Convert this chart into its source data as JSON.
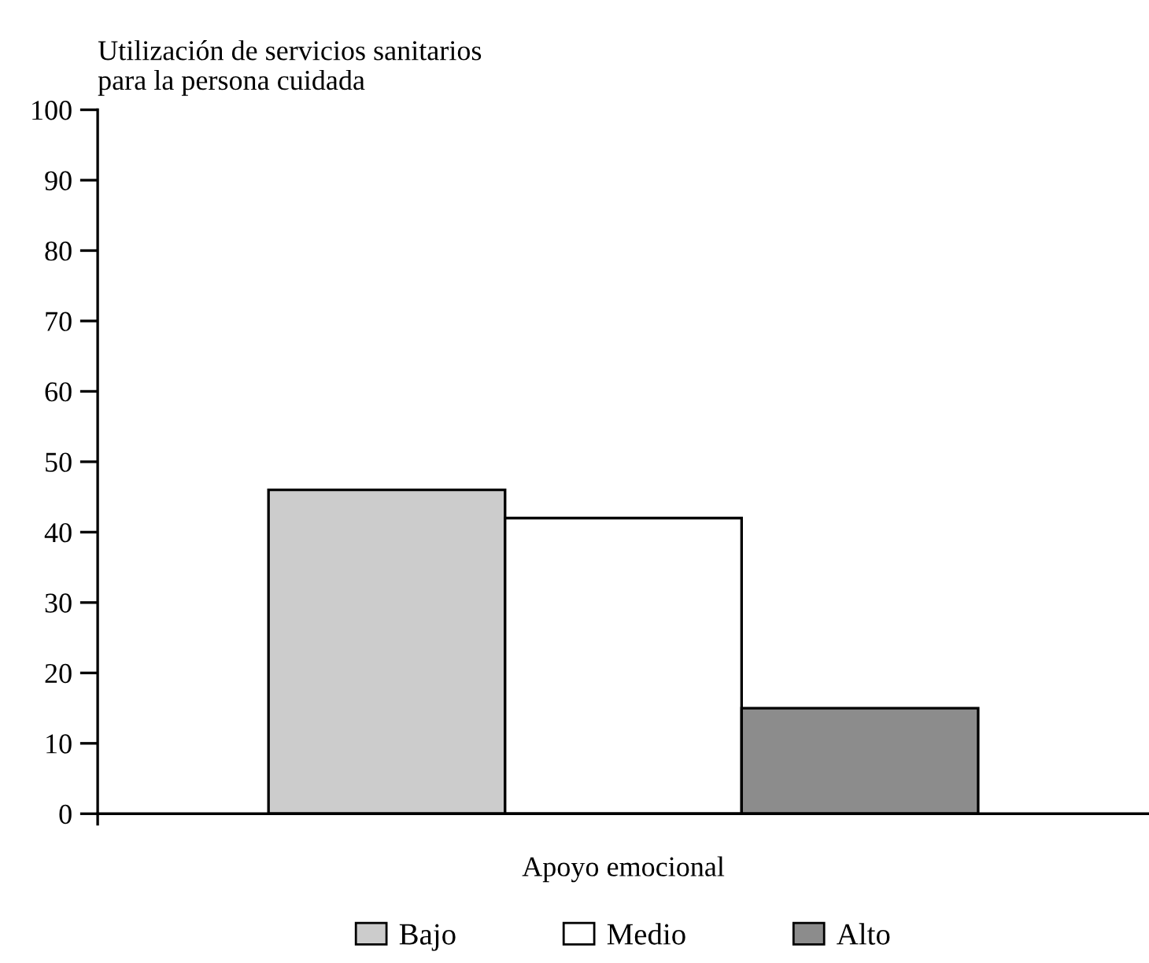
{
  "chart_data": {
    "type": "bar",
    "ylabel": "Utilización de servicios sanitarios\npara la persona cuidada",
    "xlabel": "Apoyo emocional",
    "categories": [
      null
    ],
    "series": [
      {
        "name": "Bajo",
        "color": "#cccccc",
        "values": [
          46
        ]
      },
      {
        "name": "Medio",
        "color": "#ffffff",
        "values": [
          42
        ]
      },
      {
        "name": "Alto",
        "color": "#8c8c8c",
        "values": [
          15
        ]
      }
    ],
    "ylim": [
      0,
      100
    ],
    "yticks": [
      0,
      10,
      20,
      30,
      40,
      50,
      60,
      70,
      80,
      90,
      100
    ],
    "grid": false,
    "legend": "bottom"
  }
}
